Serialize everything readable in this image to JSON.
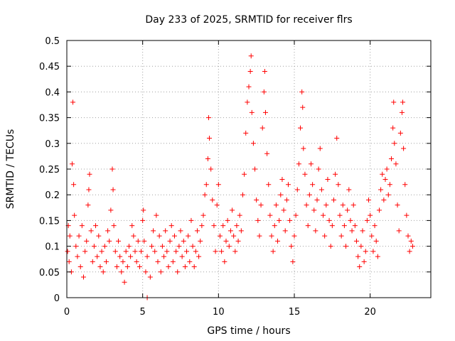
{
  "chart_data": {
    "type": "scatter",
    "title": "Day 233 of 2025, SRMTID for receiver flrs",
    "xlabel": "GPS time / hours",
    "ylabel": "SRMTID / TECUs",
    "xlim": [
      0,
      24
    ],
    "ylim": [
      0,
      0.5
    ],
    "x_ticks": [
      0,
      5,
      10,
      15,
      20
    ],
    "y_ticks": [
      0,
      0.05,
      0.1,
      0.15,
      0.2,
      0.25,
      0.3,
      0.35,
      0.4,
      0.45,
      0.5
    ],
    "grid": true,
    "marker": "plus",
    "color": "#ff0000",
    "series": [
      {
        "values": [
          [
            0.05,
            0.09
          ],
          [
            0.1,
            0.14
          ],
          [
            0.15,
            0.07
          ],
          [
            0.2,
            0.12
          ],
          [
            0.3,
            0.05
          ],
          [
            0.35,
            0.26
          ],
          [
            0.4,
            0.38
          ],
          [
            0.45,
            0.22
          ],
          [
            0.5,
            0.16
          ],
          [
            0.6,
            0.1
          ],
          [
            0.7,
            0.08
          ],
          [
            0.8,
            0.12
          ],
          [
            0.9,
            0.06
          ],
          [
            1.0,
            0.14
          ],
          [
            1.1,
            0.04
          ],
          [
            1.2,
            0.09
          ],
          [
            1.3,
            0.11
          ],
          [
            1.4,
            0.18
          ],
          [
            1.45,
            0.21
          ],
          [
            1.5,
            0.24
          ],
          [
            1.6,
            0.13
          ],
          [
            1.7,
            0.07
          ],
          [
            1.8,
            0.1
          ],
          [
            1.9,
            0.14
          ],
          [
            2.0,
            0.08
          ],
          [
            2.1,
            0.12
          ],
          [
            2.2,
            0.06
          ],
          [
            2.3,
            0.09
          ],
          [
            2.4,
            0.05
          ],
          [
            2.5,
            0.1
          ],
          [
            2.6,
            0.07
          ],
          [
            2.7,
            0.13
          ],
          [
            2.8,
            0.11
          ],
          [
            2.9,
            0.17
          ],
          [
            3.0,
            0.25
          ],
          [
            3.05,
            0.21
          ],
          [
            3.1,
            0.14
          ],
          [
            3.2,
            0.09
          ],
          [
            3.3,
            0.06
          ],
          [
            3.4,
            0.11
          ],
          [
            3.5,
            0.08
          ],
          [
            3.6,
            0.05
          ],
          [
            3.7,
            0.07
          ],
          [
            3.8,
            0.03
          ],
          [
            3.9,
            0.09
          ],
          [
            4.0,
            0.06
          ],
          [
            4.1,
            0.1
          ],
          [
            4.2,
            0.08
          ],
          [
            4.3,
            0.14
          ],
          [
            4.4,
            0.12
          ],
          [
            4.5,
            0.09
          ],
          [
            4.6,
            0.07
          ],
          [
            4.7,
            0.11
          ],
          [
            4.8,
            0.06
          ],
          [
            4.9,
            0.09
          ],
          [
            5.0,
            0.15
          ],
          [
            5.05,
            0.17
          ],
          [
            5.1,
            0.11
          ],
          [
            5.2,
            0.05
          ],
          [
            5.3,
            0.08
          ],
          [
            5.5,
            0.04
          ],
          [
            5.6,
            0.1
          ],
          [
            5.7,
            0.13
          ],
          [
            5.8,
            0.09
          ],
          [
            5.9,
            0.16
          ],
          [
            6.0,
            0.07
          ],
          [
            6.1,
            0.12
          ],
          [
            6.2,
            0.05
          ],
          [
            6.3,
            0.1
          ],
          [
            6.4,
            0.08
          ],
          [
            6.5,
            0.13
          ],
          [
            6.6,
            0.09
          ],
          [
            6.7,
            0.06
          ],
          [
            6.8,
            0.11
          ],
          [
            6.9,
            0.14
          ],
          [
            7.0,
            0.07
          ],
          [
            7.1,
            0.12
          ],
          [
            7.2,
            0.09
          ],
          [
            7.3,
            0.05
          ],
          [
            7.4,
            0.1
          ],
          [
            7.5,
            0.13
          ],
          [
            7.6,
            0.08
          ],
          [
            7.7,
            0.11
          ],
          [
            7.8,
            0.06
          ],
          [
            7.9,
            0.09
          ],
          [
            8.0,
            0.12
          ],
          [
            8.1,
            0.07
          ],
          [
            8.2,
            0.15
          ],
          [
            8.3,
            0.1
          ],
          [
            8.4,
            0.06
          ],
          [
            8.5,
            0.09
          ],
          [
            8.6,
            0.13
          ],
          [
            8.7,
            0.08
          ],
          [
            8.8,
            0.11
          ],
          [
            8.9,
            0.14
          ],
          [
            9.0,
            0.16
          ],
          [
            9.1,
            0.2
          ],
          [
            9.2,
            0.22
          ],
          [
            9.3,
            0.27
          ],
          [
            9.35,
            0.35
          ],
          [
            9.4,
            0.31
          ],
          [
            9.5,
            0.25
          ],
          [
            9.6,
            0.19
          ],
          [
            9.7,
            0.14
          ],
          [
            9.8,
            0.09
          ],
          [
            9.9,
            0.18
          ],
          [
            10.0,
            0.22
          ],
          [
            10.1,
            0.12
          ],
          [
            10.2,
            0.09
          ],
          [
            10.3,
            0.14
          ],
          [
            10.4,
            0.07
          ],
          [
            10.5,
            0.11
          ],
          [
            10.6,
            0.15
          ],
          [
            10.7,
            0.1
          ],
          [
            10.8,
            0.13
          ],
          [
            10.9,
            0.17
          ],
          [
            11.0,
            0.12
          ],
          [
            11.1,
            0.09
          ],
          [
            11.2,
            0.14
          ],
          [
            11.3,
            0.11
          ],
          [
            11.4,
            0.16
          ],
          [
            11.5,
            0.13
          ],
          [
            11.6,
            0.2
          ],
          [
            11.7,
            0.24
          ],
          [
            11.8,
            0.32
          ],
          [
            11.9,
            0.38
          ],
          [
            12.0,
            0.41
          ],
          [
            12.1,
            0.44
          ],
          [
            12.15,
            0.47
          ],
          [
            12.2,
            0.36
          ],
          [
            12.3,
            0.3
          ],
          [
            12.4,
            0.25
          ],
          [
            12.5,
            0.19
          ],
          [
            12.6,
            0.15
          ],
          [
            12.7,
            0.12
          ],
          [
            12.8,
            0.18
          ],
          [
            12.9,
            0.33
          ],
          [
            13.0,
            0.4
          ],
          [
            13.05,
            0.44
          ],
          [
            13.1,
            0.36
          ],
          [
            13.2,
            0.28
          ],
          [
            13.3,
            0.22
          ],
          [
            13.4,
            0.16
          ],
          [
            13.5,
            0.12
          ],
          [
            13.6,
            0.09
          ],
          [
            13.7,
            0.14
          ],
          [
            13.8,
            0.18
          ],
          [
            13.9,
            0.11
          ],
          [
            14.0,
            0.15
          ],
          [
            14.1,
            0.2
          ],
          [
            14.2,
            0.23
          ],
          [
            14.3,
            0.17
          ],
          [
            14.4,
            0.13
          ],
          [
            14.5,
            0.19
          ],
          [
            14.6,
            0.22
          ],
          [
            14.7,
            0.15
          ],
          [
            14.8,
            0.1
          ],
          [
            14.9,
            0.07
          ],
          [
            15.0,
            0.12
          ],
          [
            15.1,
            0.16
          ],
          [
            15.2,
            0.21
          ],
          [
            15.3,
            0.26
          ],
          [
            15.4,
            0.33
          ],
          [
            15.5,
            0.4
          ],
          [
            15.55,
            0.37
          ],
          [
            15.6,
            0.29
          ],
          [
            15.7,
            0.24
          ],
          [
            15.8,
            0.18
          ],
          [
            15.9,
            0.14
          ],
          [
            16.0,
            0.2
          ],
          [
            16.1,
            0.26
          ],
          [
            16.2,
            0.22
          ],
          [
            16.3,
            0.17
          ],
          [
            16.4,
            0.13
          ],
          [
            16.5,
            0.19
          ],
          [
            16.6,
            0.25
          ],
          [
            16.7,
            0.29
          ],
          [
            16.8,
            0.21
          ],
          [
            16.9,
            0.16
          ],
          [
            17.0,
            0.12
          ],
          [
            17.1,
            0.18
          ],
          [
            17.2,
            0.23
          ],
          [
            17.3,
            0.15
          ],
          [
            17.4,
            0.1
          ],
          [
            17.5,
            0.14
          ],
          [
            17.6,
            0.19
          ],
          [
            17.7,
            0.24
          ],
          [
            17.8,
            0.31
          ],
          [
            17.9,
            0.22
          ],
          [
            18.0,
            0.16
          ],
          [
            18.1,
            0.12
          ],
          [
            18.2,
            0.18
          ],
          [
            18.3,
            0.14
          ],
          [
            18.4,
            0.1
          ],
          [
            18.5,
            0.17
          ],
          [
            18.6,
            0.21
          ],
          [
            18.7,
            0.15
          ],
          [
            18.8,
            0.13
          ],
          [
            18.9,
            0.18
          ],
          [
            19.0,
            0.14
          ],
          [
            19.1,
            0.11
          ],
          [
            19.2,
            0.08
          ],
          [
            19.3,
            0.06
          ],
          [
            19.4,
            0.1
          ],
          [
            19.5,
            0.13
          ],
          [
            19.6,
            0.07
          ],
          [
            19.7,
            0.09
          ],
          [
            19.8,
            0.15
          ],
          [
            19.9,
            0.19
          ],
          [
            20.0,
            0.16
          ],
          [
            20.1,
            0.12
          ],
          [
            20.2,
            0.09
          ],
          [
            20.3,
            0.14
          ],
          [
            20.4,
            0.11
          ],
          [
            20.5,
            0.08
          ],
          [
            20.6,
            0.17
          ],
          [
            20.7,
            0.21
          ],
          [
            20.8,
            0.24
          ],
          [
            20.9,
            0.19
          ],
          [
            21.0,
            0.23
          ],
          [
            21.1,
            0.25
          ],
          [
            21.2,
            0.2
          ],
          [
            21.3,
            0.22
          ],
          [
            21.4,
            0.27
          ],
          [
            21.5,
            0.33
          ],
          [
            21.55,
            0.38
          ],
          [
            21.6,
            0.3
          ],
          [
            21.7,
            0.26
          ],
          [
            21.8,
            0.18
          ],
          [
            21.9,
            0.13
          ],
          [
            22.0,
            0.32
          ],
          [
            22.1,
            0.36
          ],
          [
            22.15,
            0.38
          ],
          [
            22.2,
            0.29
          ],
          [
            22.3,
            0.22
          ],
          [
            22.4,
            0.16
          ],
          [
            22.5,
            0.12
          ],
          [
            22.6,
            0.09
          ],
          [
            22.7,
            0.11
          ],
          [
            22.8,
            0.1
          ],
          [
            5.3,
            0.0
          ]
        ]
      }
    ]
  }
}
